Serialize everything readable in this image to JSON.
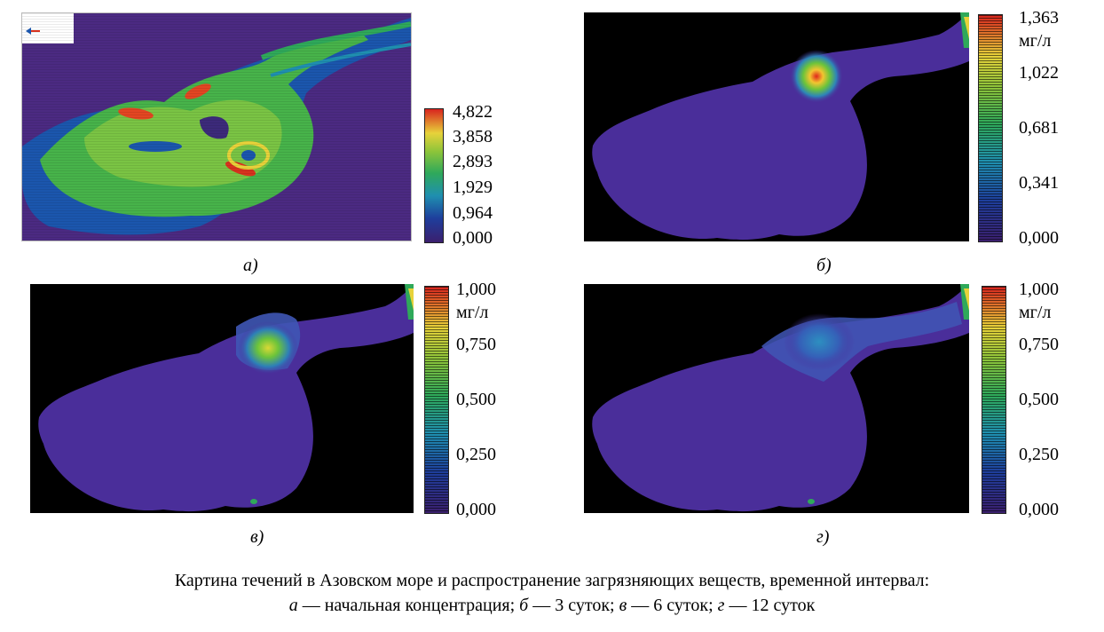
{
  "panels": {
    "a": {
      "label": "а)",
      "ticks": [
        "4,822",
        "3,858",
        "2,893",
        "1,929",
        "0,964",
        "0,000"
      ],
      "colors": {
        "water": "#4b2a82",
        "high": "#d8321e",
        "mid": "#6cc43a",
        "low": "#1b6fb3"
      }
    },
    "b": {
      "label": "б)",
      "unit": "мг/л",
      "ticks": [
        "1,363",
        "1,022",
        "0,681",
        "0,341",
        "0,000"
      ]
    },
    "v": {
      "label": "в)",
      "unit": "мг/л",
      "ticks": [
        "1,000",
        "0,750",
        "0,500",
        "0,250",
        "0,000"
      ]
    },
    "g": {
      "label": "г)",
      "unit": "мг/л",
      "ticks": [
        "1,000",
        "0,750",
        "0,500",
        "0,250",
        "0,000"
      ]
    }
  },
  "caption": {
    "line1": "Картина течений в Азовском море и распространение загрязняющих веществ, временной интервал:",
    "a_letter": "а",
    "a_text": " — начальная концентрация; ",
    "b_letter": "б",
    "b_text": " — 3 суток; ",
    "v_letter": "в",
    "v_text": " — 6 суток; ",
    "g_letter": "г",
    "g_text": " — 12 суток"
  },
  "colors": {
    "sea": "#4a2e9a",
    "background": "#000000"
  }
}
